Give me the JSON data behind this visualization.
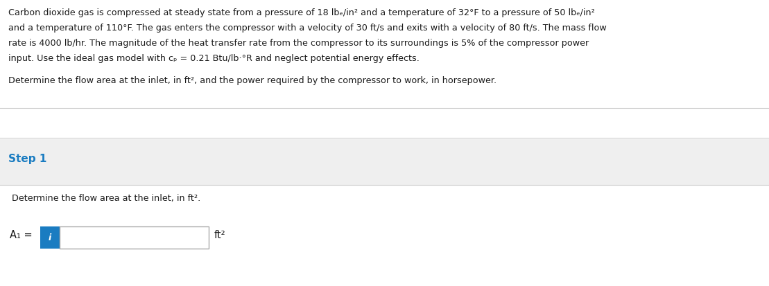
{
  "bg_color": "#ffffff",
  "panel_bg_color": "#efefef",
  "divider_color": "#cccccc",
  "text_color": "#1a1a1a",
  "step_color": "#1a7cc1",
  "paragraph1_line1": "Carbon dioxide gas is compressed at steady state from a pressure of 18 lbₑ/in² and a temperature of 32°F to a pressure of 50 lbₑ/in²",
  "paragraph1_line2": "and a temperature of 110°F. The gas enters the compressor with a velocity of 30 ft/s and exits with a velocity of 80 ft/s. The mass flow",
  "paragraph1_line3": "rate is 4000 lb/hr. The magnitude of the heat transfer rate from the compressor to its surroundings is 5% of the compressor power",
  "paragraph1_line4": "input. Use the ideal gas model with cₚ = 0.21 Btu/lb·°R and neglect potential energy effects.",
  "paragraph2": "Determine the flow area at the inlet, in ft², and the power required by the compressor to work, in horsepower.",
  "step_label": "Step 1",
  "sub_text": "Determine the flow area at the inlet, in ft².",
  "A1_label": "A₁ =",
  "unit_label": "ft²",
  "input_box_color": "#ffffff",
  "input_border_color": "#aaaaaa",
  "info_button_color": "#1a7cc1",
  "info_button_text": "i",
  "fig_width": 11.09,
  "fig_height": 4.14,
  "dpi": 100
}
